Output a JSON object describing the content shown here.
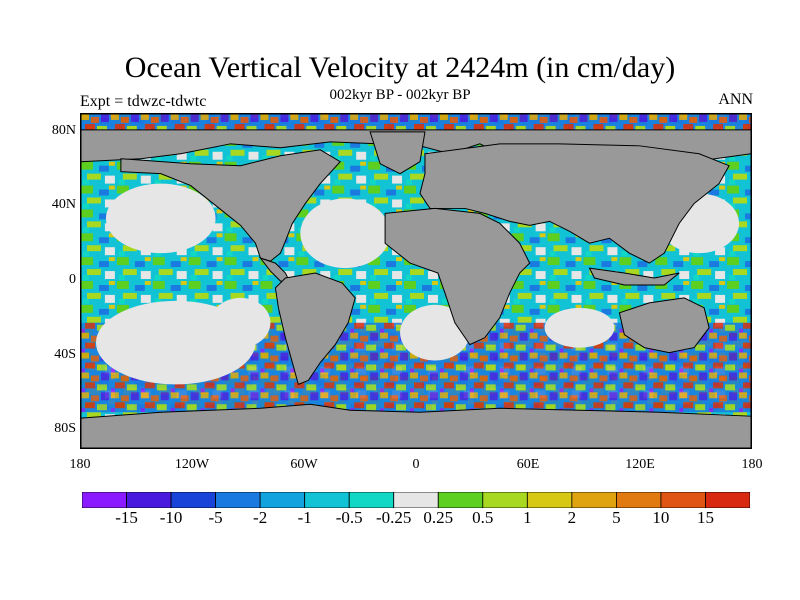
{
  "title": "Ocean Vertical Velocity at 2424m (in cm/day)",
  "subtitle": "002kyr BP - 002kyr BP",
  "left_label": "Expt = tdwzc-tdwtc",
  "right_label": "ANN",
  "map": {
    "lat_labels": [
      "80N",
      "40N",
      "0",
      "40S",
      "80S"
    ],
    "lat_values": [
      80,
      40,
      0,
      -40,
      -80
    ],
    "lon_labels": [
      "180",
      "120W",
      "60W",
      "0",
      "60E",
      "120E",
      "180"
    ],
    "lon_values": [
      -180,
      -120,
      -60,
      0,
      60,
      120,
      180
    ],
    "lat_range": [
      -90,
      90
    ],
    "lon_range": [
      -180,
      180
    ],
    "land_color": "#999999",
    "coast_color": "#000000"
  },
  "colorbar": {
    "labels": [
      "-15",
      "-10",
      "-5",
      "-2",
      "-1",
      "-0.5",
      "-0.25",
      "0.25",
      "0.5",
      "1",
      "2",
      "5",
      "10",
      "15"
    ],
    "colors": [
      "#8a1aff",
      "#4a1adf",
      "#1a44d8",
      "#1a7ae0",
      "#12a2de",
      "#12c3d6",
      "#10d8c4",
      "#e6e6e6",
      "#5ccf20",
      "#a8d820",
      "#d6c814",
      "#e0a310",
      "#e17a10",
      "#e05614",
      "#d82a10"
    ]
  }
}
